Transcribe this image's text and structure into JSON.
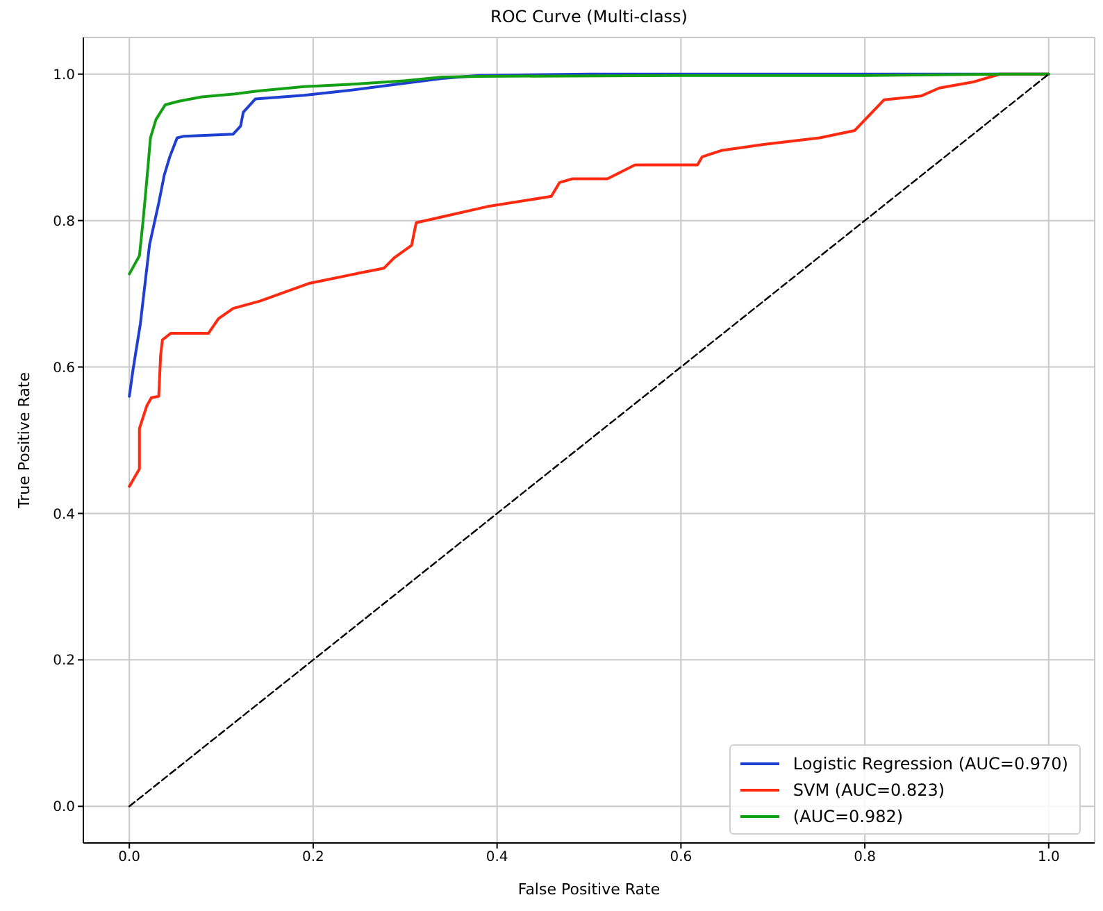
{
  "chart_data": {
    "type": "line",
    "title": "ROC Curve (Multi-class)",
    "xlabel": "False Positive Rate",
    "ylabel": "True Positive Rate",
    "xlim": [
      -0.05,
      1.05
    ],
    "ylim": [
      -0.05,
      1.05
    ],
    "xticks": [
      {
        "value": 0,
        "label": "0.0"
      },
      0.2,
      0.4,
      0.6,
      0.8,
      {
        "value": 1,
        "label": "1.0"
      }
    ],
    "yticks": [
      {
        "value": 0,
        "label": "0.0"
      },
      0.2,
      0.4,
      0.6,
      0.8,
      {
        "value": 1,
        "label": "1.0"
      }
    ],
    "grid": true,
    "legend": "bottom right",
    "series": [
      {
        "name": "Logistic Regression (AUC=0.970)",
        "color": "#1f3fd0",
        "x": [
          0,
          0.004,
          0.012,
          0.022,
          0.032,
          0.038,
          0.044,
          0.052,
          0.059,
          0.113,
          0.121,
          0.124,
          0.137,
          0.19,
          0.24,
          0.29,
          0.34,
          0.38,
          0.5,
          0.7,
          0.9,
          1.0
        ],
        "values": [
          0.56,
          0.596,
          0.659,
          0.767,
          0.824,
          0.862,
          0.887,
          0.913,
          0.915,
          0.918,
          0.929,
          0.948,
          0.966,
          0.971,
          0.978,
          0.986,
          0.994,
          0.998,
          1.0,
          1.0,
          1.0,
          1.0
        ]
      },
      {
        "name": "SVM (AUC=0.823)",
        "color": "#ff2a10",
        "x": [
          0,
          0.011,
          0.011,
          0.019,
          0.024,
          0.032,
          0.034,
          0.036,
          0.045,
          0.086,
          0.097,
          0.113,
          0.142,
          0.195,
          0.249,
          0.277,
          0.288,
          0.307,
          0.312,
          0.347,
          0.389,
          0.459,
          0.468,
          0.482,
          0.52,
          0.55,
          0.618,
          0.623,
          0.645,
          0.69,
          0.751,
          0.789,
          0.821,
          0.861,
          0.881,
          0.917,
          0.947,
          1.0
        ],
        "values": [
          0.437,
          0.461,
          0.516,
          0.547,
          0.558,
          0.56,
          0.615,
          0.637,
          0.646,
          0.646,
          0.666,
          0.68,
          0.69,
          0.714,
          0.728,
          0.735,
          0.749,
          0.766,
          0.797,
          0.807,
          0.819,
          0.833,
          0.852,
          0.857,
          0.857,
          0.876,
          0.876,
          0.887,
          0.896,
          0.904,
          0.913,
          0.923,
          0.965,
          0.97,
          0.981,
          0.989,
          1.0,
          1.0
        ]
      },
      {
        "name": "(AUC=0.982)",
        "color": "#14a014",
        "x": [
          0,
          0.011,
          0.015,
          0.019,
          0.023,
          0.029,
          0.039,
          0.054,
          0.079,
          0.115,
          0.14,
          0.19,
          0.24,
          0.3,
          0.34,
          0.38,
          0.6,
          0.8,
          0.95,
          1.0
        ],
        "values": [
          0.727,
          0.752,
          0.8,
          0.855,
          0.913,
          0.938,
          0.958,
          0.963,
          0.969,
          0.973,
          0.977,
          0.983,
          0.986,
          0.991,
          0.996,
          0.997,
          0.998,
          0.998,
          1.0,
          1.0
        ]
      },
      {
        "color": "#000000",
        "line_style": "dashed",
        "x": [
          0,
          1
        ],
        "values": [
          0,
          1
        ]
      }
    ]
  }
}
